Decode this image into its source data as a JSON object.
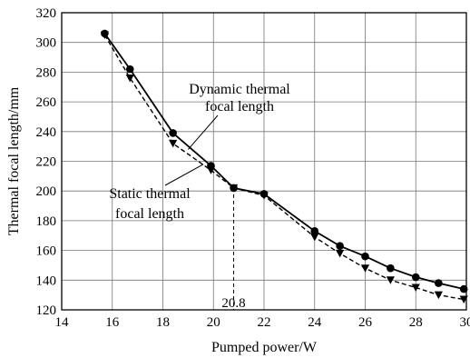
{
  "chart_data": {
    "type": "line",
    "xlabel": "Pumped power/W",
    "ylabel": "Thermal focal length/mm",
    "xlim": [
      14,
      30
    ],
    "ylim": [
      120,
      320
    ],
    "x_ticks": [
      14,
      16,
      18,
      20,
      22,
      24,
      26,
      28,
      30
    ],
    "y_ticks": [
      120,
      140,
      160,
      180,
      200,
      220,
      240,
      260,
      280,
      300,
      320
    ],
    "grid": true,
    "series": [
      {
        "name": "Dynamic thermal focal length",
        "line_style": "solid",
        "marker": "circle",
        "x": [
          15.7,
          16.7,
          18.4,
          19.9,
          20.8,
          22.0,
          24.0,
          25.0,
          26.0,
          27.0,
          28.0,
          28.9,
          29.9
        ],
        "y": [
          306,
          282,
          239,
          217,
          202,
          198,
          173,
          163,
          156,
          148,
          142,
          138,
          134
        ]
      },
      {
        "name": "Static thermal focal length",
        "line_style": "dashed",
        "marker": "triangle-down",
        "x": [
          15.7,
          16.7,
          18.4,
          19.9,
          20.8,
          22.0,
          24.0,
          25.0,
          26.0,
          27.0,
          28.0,
          28.9,
          29.9
        ],
        "y": [
          305,
          276,
          232,
          214,
          202,
          197,
          169,
          158,
          148,
          140,
          135,
          130,
          127
        ]
      }
    ],
    "annotations": [
      {
        "id": "dynamic",
        "lines": [
          "Dynamic thermal",
          "focal length"
        ],
        "target_x": 19.0,
        "target_y": 228
      },
      {
        "id": "static",
        "lines": [
          "Static thermal",
          "focal length"
        ],
        "target_x": 19.6,
        "target_y": 218
      },
      {
        "id": "vline",
        "x": 20.8,
        "label": "20.8"
      }
    ]
  }
}
